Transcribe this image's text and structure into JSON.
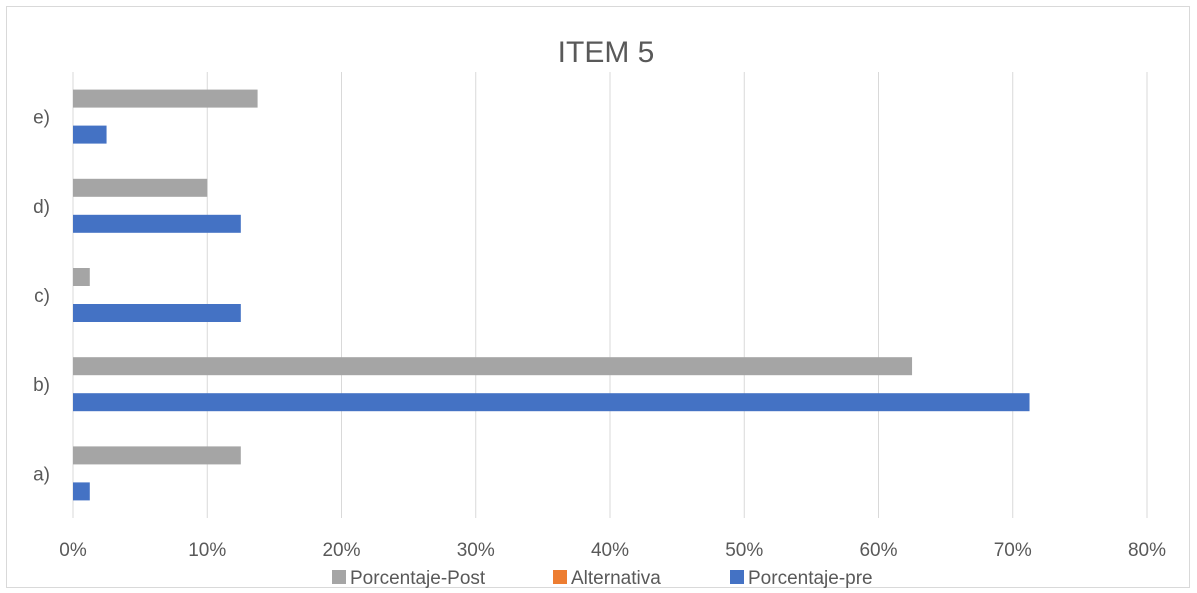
{
  "chart_data": {
    "type": "bar",
    "orientation": "horizontal",
    "title": "ITEM 5",
    "xlabel": "",
    "ylabel": "",
    "categories": [
      "a)",
      "b)",
      "c)",
      "d)",
      "e)"
    ],
    "series": [
      {
        "name": "Porcentaje-Post",
        "color": "#a5a5a5",
        "values": [
          12.5,
          62.5,
          1.25,
          10,
          13.75
        ]
      },
      {
        "name": "Alternativa",
        "color": "#ed7d31",
        "values": [
          0,
          0,
          0,
          0,
          0
        ]
      },
      {
        "name": "Porcentaje-pre",
        "color": "#4472c4",
        "values": [
          1.25,
          71.25,
          12.5,
          12.5,
          2.5
        ]
      }
    ],
    "xlim": [
      0,
      80
    ],
    "xticks": [
      0,
      10,
      20,
      30,
      40,
      50,
      60,
      70,
      80
    ],
    "xtick_labels": [
      "0%",
      "10%",
      "20%",
      "30%",
      "40%",
      "50%",
      "60%",
      "70%",
      "80%"
    ],
    "grid": "vertical",
    "legend_position": "bottom"
  }
}
